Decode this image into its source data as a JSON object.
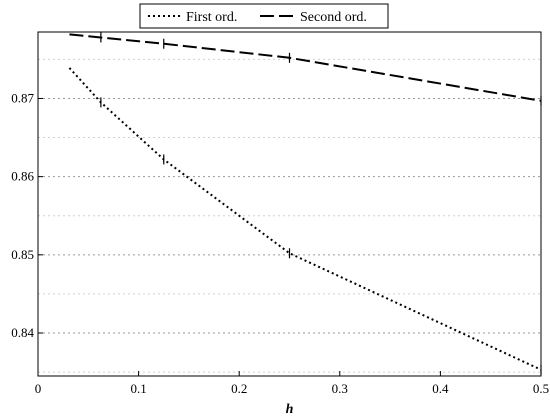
{
  "chart_data": {
    "type": "line",
    "title": "",
    "xlabel": "h",
    "ylabel": "",
    "xlim": [
      0,
      0.5
    ],
    "ylim": [
      0.8345,
      0.8785
    ],
    "xticks": [
      0,
      0.1,
      0.2,
      0.3,
      0.4,
      0.5
    ],
    "yticks": [
      0.84,
      0.85,
      0.86,
      0.87
    ],
    "xtick_labels": [
      "0",
      "0.1",
      "0.2",
      "0.3",
      "0.4",
      "0.5"
    ],
    "ytick_labels": [
      "0.84",
      "0.85",
      "0.86",
      "0.87"
    ],
    "minor_ygrid": [
      0.835,
      0.845,
      0.855,
      0.865,
      0.875
    ],
    "grid": true,
    "legend_position": "top-center-outside",
    "series": [
      {
        "name": "First ord.",
        "style": "dotted",
        "color": "#000000",
        "x": [
          0.03125,
          0.0625,
          0.125,
          0.25,
          0.5
        ],
        "y": [
          0.8739,
          0.8695,
          0.8622,
          0.8502,
          0.8353
        ]
      },
      {
        "name": "Second ord.",
        "style": "dashed",
        "color": "#000000",
        "x": [
          0.03125,
          0.0625,
          0.125,
          0.25,
          0.5
        ],
        "y": [
          0.8782,
          0.8778,
          0.877,
          0.8752,
          0.8697
        ]
      }
    ]
  }
}
